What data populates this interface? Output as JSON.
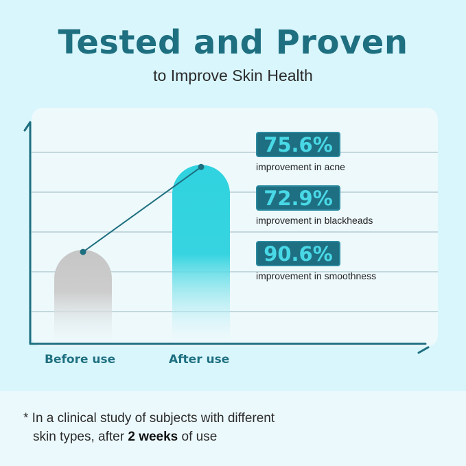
{
  "header": {
    "title": "Tested and Proven",
    "subtitle": "to Improve Skin Health"
  },
  "chart_data": {
    "type": "bar",
    "categories": [
      "Before use",
      "After use"
    ],
    "values": [
      0.45,
      0.86
    ],
    "ylim": [
      0,
      1
    ],
    "grid": true,
    "annotations": [
      {
        "value": "75.6%",
        "label": "improvement in acne"
      },
      {
        "value": "72.9%",
        "label": "improvement in blackheads"
      },
      {
        "value": "90.6%",
        "label": "improvement in smoothness"
      }
    ]
  },
  "colors": {
    "accent": "#1e6f80",
    "after_bar": "#2fd3df",
    "before_bar": "#c9c9c9",
    "stat_text": "#49d8e6"
  },
  "footnote": {
    "asterisk": "*",
    "line1": " In a clinical study of subjects with different",
    "line2_pre": "skin types, after ",
    "line2_bold": "2 weeks",
    "line2_post": " of use"
  }
}
